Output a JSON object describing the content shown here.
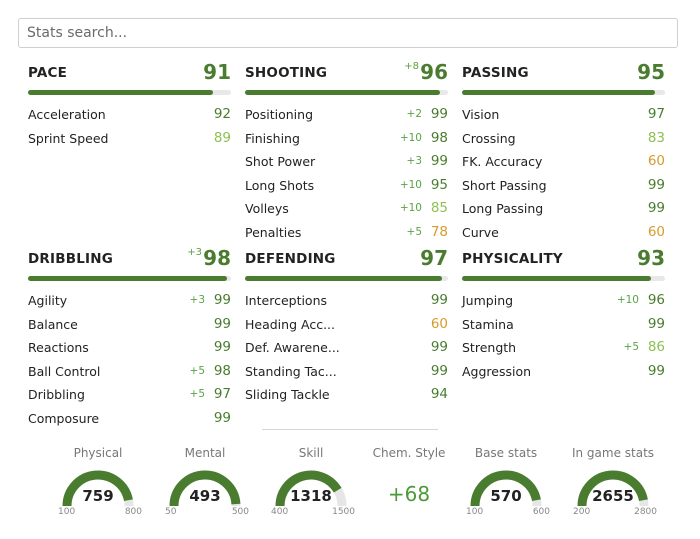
{
  "search": {
    "placeholder": "Stats search..."
  },
  "colors": {
    "green": "#4a7c2f",
    "light_green": "#8cc152",
    "orange": "#d99a2b",
    "bar_bg": "#e8e8e8",
    "plus": "#5aa245"
  },
  "groups": [
    {
      "name": "PACE",
      "value": "91",
      "plus": "",
      "fill": 0.91,
      "rows": [
        {
          "name": "Acceleration",
          "value": "92",
          "plus": "",
          "tone": "green"
        },
        {
          "name": "Sprint Speed",
          "value": "89",
          "plus": "",
          "tone": "light_green"
        }
      ]
    },
    {
      "name": "SHOOTING",
      "value": "96",
      "plus": "+8",
      "fill": 0.96,
      "rows": [
        {
          "name": "Positioning",
          "value": "99",
          "plus": "+2",
          "tone": "green"
        },
        {
          "name": "Finishing",
          "value": "98",
          "plus": "+10",
          "tone": "green"
        },
        {
          "name": "Shot Power",
          "value": "99",
          "plus": "+3",
          "tone": "green"
        },
        {
          "name": "Long Shots",
          "value": "95",
          "plus": "+10",
          "tone": "green"
        },
        {
          "name": "Volleys",
          "value": "85",
          "plus": "+10",
          "tone": "light_green"
        },
        {
          "name": "Penalties",
          "value": "78",
          "plus": "+5",
          "tone": "orange"
        }
      ]
    },
    {
      "name": "PASSING",
      "value": "95",
      "plus": "",
      "fill": 0.95,
      "rows": [
        {
          "name": "Vision",
          "value": "97",
          "plus": "",
          "tone": "green"
        },
        {
          "name": "Crossing",
          "value": "83",
          "plus": "",
          "tone": "light_green"
        },
        {
          "name": "FK. Accuracy",
          "value": "60",
          "plus": "",
          "tone": "orange"
        },
        {
          "name": "Short Passing",
          "value": "99",
          "plus": "",
          "tone": "green"
        },
        {
          "name": "Long Passing",
          "value": "99",
          "plus": "",
          "tone": "green"
        },
        {
          "name": "Curve",
          "value": "60",
          "plus": "",
          "tone": "orange"
        }
      ]
    },
    {
      "name": "DRIBBLING",
      "value": "98",
      "plus": "+3",
      "fill": 0.98,
      "rows": [
        {
          "name": "Agility",
          "value": "99",
          "plus": "+3",
          "tone": "green"
        },
        {
          "name": "Balance",
          "value": "99",
          "plus": "",
          "tone": "green"
        },
        {
          "name": "Reactions",
          "value": "99",
          "plus": "",
          "tone": "green"
        },
        {
          "name": "Ball Control",
          "value": "98",
          "plus": "+5",
          "tone": "green"
        },
        {
          "name": "Dribbling",
          "value": "97",
          "plus": "+5",
          "tone": "green"
        },
        {
          "name": "Composure",
          "value": "99",
          "plus": "",
          "tone": "green"
        }
      ]
    },
    {
      "name": "DEFENDING",
      "value": "97",
      "plus": "",
      "fill": 0.97,
      "rows": [
        {
          "name": "Interceptions",
          "value": "99",
          "plus": "",
          "tone": "green"
        },
        {
          "name": "Heading Acc...",
          "value": "60",
          "plus": "",
          "tone": "orange"
        },
        {
          "name": "Def. Awarene...",
          "value": "99",
          "plus": "",
          "tone": "green"
        },
        {
          "name": "Standing Tac...",
          "value": "99",
          "plus": "",
          "tone": "green"
        },
        {
          "name": "Sliding Tackle",
          "value": "94",
          "plus": "",
          "tone": "green"
        }
      ]
    },
    {
      "name": "PHYSICALITY",
      "value": "93",
      "plus": "",
      "fill": 0.93,
      "rows": [
        {
          "name": "Jumping",
          "value": "96",
          "plus": "+10",
          "tone": "green"
        },
        {
          "name": "Stamina",
          "value": "99",
          "plus": "",
          "tone": "green"
        },
        {
          "name": "Strength",
          "value": "86",
          "plus": "+5",
          "tone": "light_green"
        },
        {
          "name": "Aggression",
          "value": "99",
          "plus": "",
          "tone": "green"
        }
      ]
    }
  ],
  "gauges": [
    {
      "label": "Physical",
      "value": "759",
      "min": "100",
      "max": "800",
      "fraction": 0.94
    },
    {
      "label": "Mental",
      "value": "493",
      "min": "50",
      "max": "500",
      "fraction": 0.98
    },
    {
      "label": "Skill",
      "value": "1318",
      "min": "400",
      "max": "1500",
      "fraction": 0.83
    },
    {
      "label": "Base stats",
      "value": "570",
      "min": "100",
      "max": "600",
      "fraction": 0.94
    },
    {
      "label": "In game stats",
      "value": "2655",
      "min": "200",
      "max": "2800",
      "fraction": 0.94
    }
  ],
  "chem_style": {
    "label": "Chem. Style",
    "value": "+68"
  }
}
